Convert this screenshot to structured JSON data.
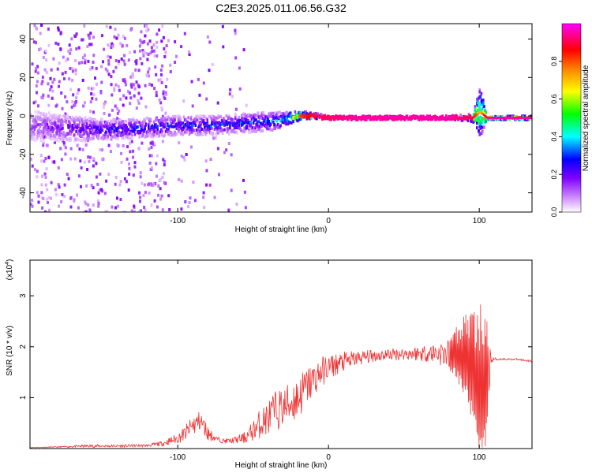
{
  "figure": {
    "title": "C2E3.2025.011.06.56.G32"
  },
  "chart_data": [
    {
      "type": "heatmap",
      "title": "C2E3.2025.011.06.56.G32",
      "xlabel": "Height of straight line (km)",
      "ylabel": "Frequency (Hz)",
      "xlim": [
        -198,
        135
      ],
      "ylim": [
        -50,
        48
      ],
      "x_ticks": [
        -100,
        0,
        100
      ],
      "x_tick_labels": [
        "-100",
        "0",
        "100"
      ],
      "y_ticks": [
        -40,
        -20,
        0,
        20,
        40
      ],
      "y_tick_labels": [
        "-40",
        "-20",
        "0",
        "20",
        "40"
      ],
      "colorbar": {
        "label": "Normalized spectral amplitude",
        "range": [
          0,
          1
        ],
        "ticks": [
          0.0,
          0.2,
          0.4,
          0.6,
          0.8
        ],
        "tick_labels": [
          "0.0",
          "0.2",
          "0.4",
          "0.6",
          "0.8"
        ],
        "colormap": [
          "#ffffff",
          "#7f00ff",
          "#0000ff",
          "#00ffff",
          "#00ff00",
          "#ffff00",
          "#ff8000",
          "#ff0000",
          "#ff00ff"
        ]
      },
      "ridge": {
        "x": [
          -198,
          -180,
          -160,
          -140,
          -120,
          -100,
          -80,
          -60,
          -40,
          -30,
          -20,
          -10,
          0,
          20,
          40,
          60,
          80,
          95,
          100,
          105,
          120,
          135
        ],
        "freq": [
          -5,
          -6,
          -7,
          -7,
          -6,
          -5,
          -5,
          -4,
          -3,
          -2,
          0,
          0,
          -1,
          -1,
          -1,
          -1,
          -1,
          -1,
          2,
          -1,
          -1,
          -1
        ],
        "spread": [
          16,
          14,
          12,
          10,
          10,
          10,
          10,
          10,
          10,
          8,
          5,
          3,
          2,
          2,
          2,
          2,
          2,
          4,
          26,
          2,
          2,
          2
        ],
        "amplitude": [
          0.15,
          0.2,
          0.25,
          0.3,
          0.3,
          0.3,
          0.3,
          0.32,
          0.35,
          0.4,
          0.8,
          0.9,
          0.92,
          0.95,
          0.95,
          0.95,
          0.95,
          0.9,
          0.7,
          0.95,
          0.95,
          0.95
        ]
      },
      "grid": false
    },
    {
      "type": "line",
      "xlabel": "Height of straight line (km)",
      "ylabel": "SNR (10 * v/v)",
      "y_scale_note": "(x10",
      "y_scale_exp": "4",
      "xlim": [
        -198,
        135
      ],
      "ylim": [
        0,
        3.7
      ],
      "x_ticks": [
        -100,
        0,
        100
      ],
      "x_tick_labels": [
        "-100",
        "0",
        "100"
      ],
      "y_ticks": [
        1,
        2,
        3
      ],
      "y_tick_labels": [
        "1",
        "2",
        "3"
      ],
      "series": [
        {
          "color": "#ee3333",
          "x": [
            -198,
            -180,
            -160,
            -140,
            -120,
            -110,
            -100,
            -95,
            -90,
            -85,
            -80,
            -75,
            -70,
            -65,
            -60,
            -55,
            -50,
            -45,
            -40,
            -35,
            -30,
            -25,
            -20,
            -15,
            -10,
            -5,
            0,
            10,
            20,
            30,
            40,
            50,
            60,
            70,
            80,
            85,
            90,
            95,
            100,
            105,
            108,
            115,
            125,
            135
          ],
          "y": [
            0.02,
            0.03,
            0.05,
            0.05,
            0.06,
            0.1,
            0.2,
            0.3,
            0.45,
            0.55,
            0.3,
            0.2,
            0.15,
            0.15,
            0.18,
            0.22,
            0.35,
            0.5,
            0.6,
            0.75,
            0.8,
            0.9,
            1.0,
            1.2,
            1.35,
            1.5,
            1.6,
            1.7,
            1.78,
            1.82,
            1.85,
            1.86,
            1.87,
            1.88,
            1.85,
            1.8,
            1.7,
            1.5,
            1.0,
            1.2,
            1.75,
            1.76,
            1.75,
            1.72
          ],
          "noise": [
            0.01,
            0.01,
            0.03,
            0.03,
            0.03,
            0.05,
            0.1,
            0.15,
            0.2,
            0.2,
            0.15,
            0.05,
            0.05,
            0.05,
            0.08,
            0.12,
            0.2,
            0.3,
            0.35,
            0.4,
            0.4,
            0.45,
            0.45,
            0.4,
            0.35,
            0.3,
            0.25,
            0.2,
            0.15,
            0.12,
            0.12,
            0.12,
            0.15,
            0.2,
            0.3,
            0.4,
            0.6,
            0.9,
            1.4,
            1.2,
            0.05,
            0.02,
            0.02,
            0.02
          ]
        }
      ],
      "grid": false
    }
  ]
}
